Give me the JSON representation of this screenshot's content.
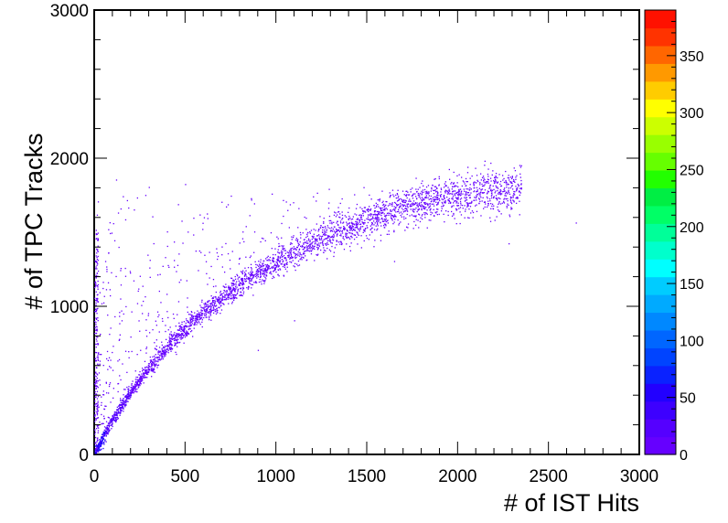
{
  "chart_data": {
    "type": "heatmap",
    "title": "",
    "xlabel": "# of IST Hits",
    "ylabel": "# of TPC Tracks",
    "xlim": [
      0,
      3000
    ],
    "ylim": [
      0,
      3000
    ],
    "x_ticks": [
      0,
      500,
      1000,
      1500,
      2000,
      2500,
      3000
    ],
    "y_ticks": [
      0,
      1000,
      2000,
      3000
    ],
    "x_tick_labels": [
      "0",
      "500",
      "1000",
      "1500",
      "2000",
      "2500",
      "3000"
    ],
    "y_tick_labels": [
      "0",
      "1000",
      "2000",
      "3000"
    ],
    "colorbar": {
      "range": [
        0,
        390
      ],
      "ticks": [
        0,
        50,
        100,
        150,
        200,
        250,
        300,
        350
      ],
      "tick_labels": [
        "0",
        "50",
        "100",
        "150",
        "200",
        "250",
        "300",
        "350"
      ],
      "colors": [
        "#6600ff",
        "#5500ff",
        "#3d00ff",
        "#2200ff",
        "#0a22ff",
        "#0044ff",
        "#0066ff",
        "#0088ff",
        "#00aaff",
        "#00ccff",
        "#00ffff",
        "#00ffcc",
        "#00ff99",
        "#00ff66",
        "#00ee44",
        "#22ff00",
        "#66ff00",
        "#99ff00",
        "#ccff00",
        "#ffff00",
        "#ffcc00",
        "#ff9900",
        "#ff6600",
        "#ff3300",
        "#ff1100"
      ]
    },
    "main_band": {
      "description_points": [
        [
          0,
          0
        ],
        [
          100,
          230
        ],
        [
          200,
          420
        ],
        [
          300,
          580
        ],
        [
          400,
          720
        ],
        [
          500,
          840
        ],
        [
          600,
          950
        ],
        [
          700,
          1050
        ],
        [
          800,
          1140
        ],
        [
          900,
          1220
        ],
        [
          1000,
          1290
        ],
        [
          1100,
          1360
        ],
        [
          1200,
          1420
        ],
        [
          1300,
          1480
        ],
        [
          1400,
          1530
        ],
        [
          1500,
          1580
        ],
        [
          1600,
          1620
        ],
        [
          1700,
          1660
        ],
        [
          1800,
          1690
        ],
        [
          1900,
          1720
        ],
        [
          2000,
          1740
        ],
        [
          2100,
          1760
        ],
        [
          2200,
          1770
        ],
        [
          2300,
          1780
        ]
      ],
      "bin_count_low_end": 60
    },
    "outliers": [
      [
        60,
        1300
      ],
      [
        120,
        1850
      ],
      [
        300,
        1800
      ],
      [
        500,
        1820
      ],
      [
        700,
        1700
      ],
      [
        2650,
        1560
      ],
      [
        2280,
        1420
      ],
      [
        1650,
        1300
      ],
      [
        1100,
        900
      ],
      [
        900,
        700
      ],
      [
        400,
        1500
      ],
      [
        250,
        1200
      ],
      [
        150,
        900
      ],
      [
        80,
        650
      ],
      [
        50,
        400
      ]
    ]
  }
}
